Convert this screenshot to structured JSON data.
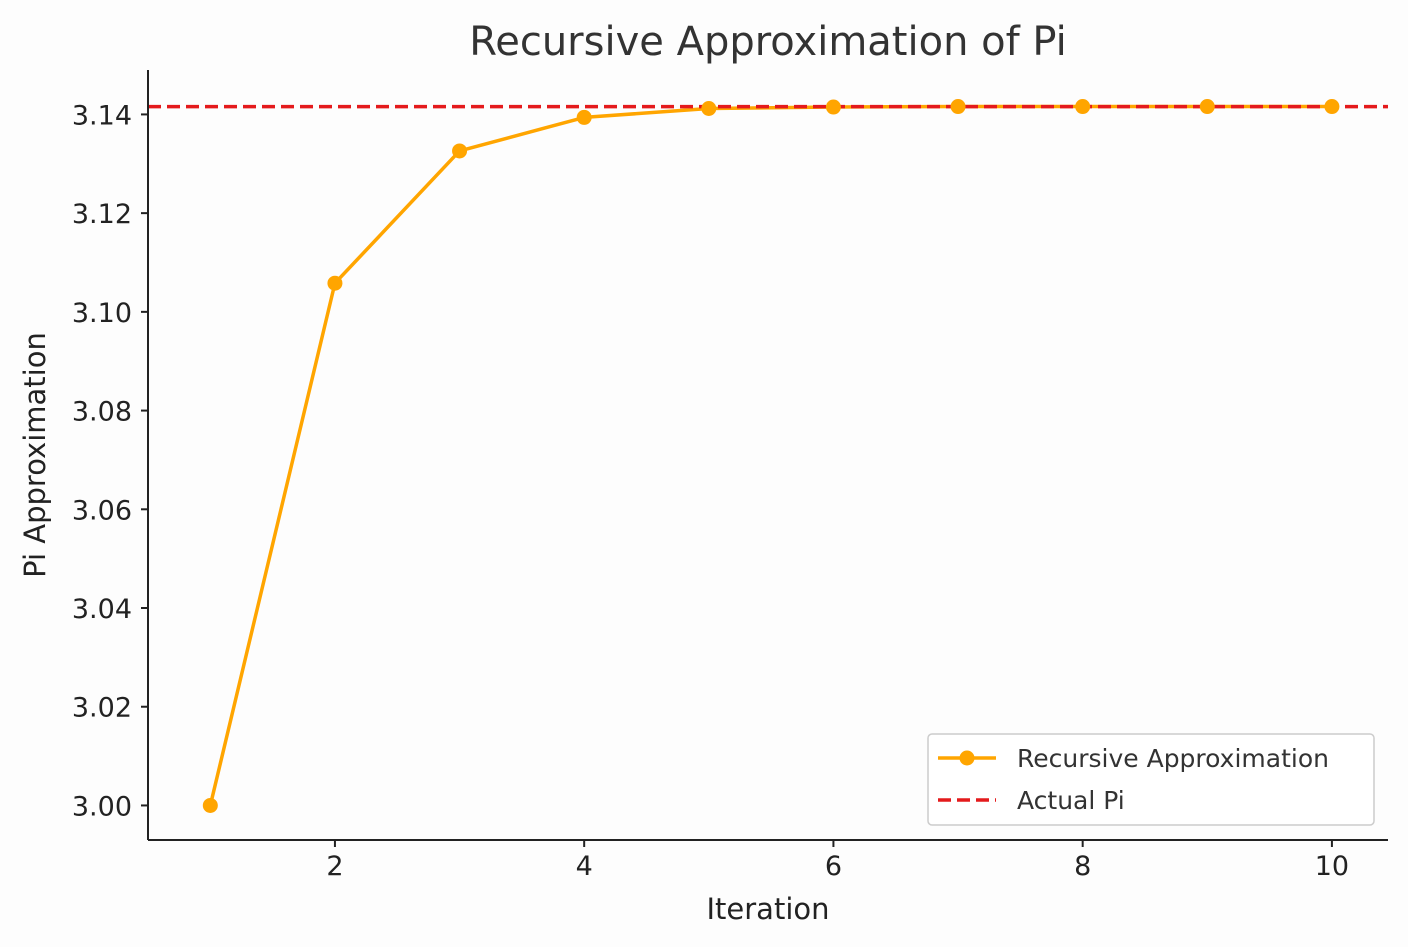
{
  "chart_data": {
    "type": "line",
    "title": "Recursive Approximation of Pi",
    "xlabel": "Iteration",
    "ylabel": "Pi Approximation",
    "xlim": [
      0.5,
      10.45
    ],
    "ylim": [
      2.993,
      3.149
    ],
    "xticks": [
      2,
      4,
      6,
      8,
      10
    ],
    "xtick_labels": [
      "2",
      "4",
      "6",
      "8",
      "10"
    ],
    "yticks": [
      3.0,
      3.02,
      3.04,
      3.06,
      3.08,
      3.1,
      3.12,
      3.14
    ],
    "ytick_labels": [
      "3.00",
      "3.02",
      "3.04",
      "3.06",
      "3.08",
      "3.10",
      "3.12",
      "3.14"
    ],
    "grid": false,
    "legend_position": "lower-right",
    "series": [
      {
        "name": "Recursive Approximation",
        "style": "line-with-markers",
        "color": "#FFA500",
        "x": [
          1,
          2,
          3,
          4,
          5,
          6,
          7,
          8,
          9,
          10
        ],
        "y": [
          3.0,
          3.1058,
          3.1326,
          3.1394,
          3.1412,
          3.1415,
          3.1416,
          3.1416,
          3.1416,
          3.1416
        ]
      },
      {
        "name": "Actual Pi",
        "style": "dashed-horizontal",
        "color": "#E41A1C",
        "value": 3.14159
      }
    ]
  }
}
